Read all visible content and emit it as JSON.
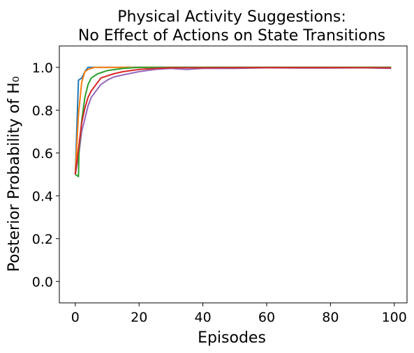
{
  "chart_data": {
    "type": "line",
    "title_lines": [
      "Physical Activity Suggestions:",
      "No Effect of Actions on State Transitions"
    ],
    "xlabel": "Episodes",
    "ylabel": "Posterior Probability of H₀",
    "xlim": [
      -5,
      104
    ],
    "ylim": [
      -0.1,
      1.1
    ],
    "xticks": [
      0,
      20,
      40,
      60,
      80,
      100
    ],
    "yticks": [
      0.0,
      0.2,
      0.4,
      0.6,
      0.8,
      1.0
    ],
    "xtick_labels": [
      "0",
      "20",
      "40",
      "60",
      "80",
      "100"
    ],
    "ytick_labels": [
      "0.0",
      "0.2",
      "0.4",
      "0.6",
      "0.8",
      "1.0"
    ],
    "grid": false,
    "legend": "none",
    "series": [
      {
        "color": "#1f77b4",
        "points": [
          [
            0,
            0.5
          ],
          [
            1,
            0.94
          ],
          [
            2,
            0.95
          ],
          [
            3,
            0.98
          ],
          [
            4,
            1.0
          ],
          [
            10,
            1.0
          ],
          [
            30,
            1.0
          ],
          [
            60,
            1.0
          ],
          [
            99,
            1.0
          ]
        ]
      },
      {
        "color": "#ff7f0e",
        "points": [
          [
            0,
            0.5
          ],
          [
            1,
            0.78
          ],
          [
            2,
            0.93
          ],
          [
            3,
            0.98
          ],
          [
            4,
            0.99
          ],
          [
            6,
            1.0
          ],
          [
            30,
            1.0
          ],
          [
            60,
            1.0
          ],
          [
            99,
            1.0
          ]
        ]
      },
      {
        "color": "#9467bd",
        "points": [
          [
            0,
            0.5
          ],
          [
            1,
            0.58
          ],
          [
            2,
            0.7
          ],
          [
            3,
            0.76
          ],
          [
            4,
            0.82
          ],
          [
            5,
            0.86
          ],
          [
            6,
            0.88
          ],
          [
            7,
            0.9
          ],
          [
            8,
            0.92
          ],
          [
            10,
            0.94
          ],
          [
            12,
            0.955
          ],
          [
            15,
            0.965
          ],
          [
            20,
            0.98
          ],
          [
            25,
            0.99
          ],
          [
            30,
            0.995
          ],
          [
            35,
            0.99
          ],
          [
            40,
            0.995
          ],
          [
            50,
            0.995
          ],
          [
            60,
            0.998
          ],
          [
            70,
            0.997
          ],
          [
            80,
            0.997
          ],
          [
            90,
            0.998
          ],
          [
            99,
            0.995
          ]
        ]
      },
      {
        "color": "#2ca02c",
        "points": [
          [
            0,
            0.5
          ],
          [
            1,
            0.49
          ],
          [
            1.2,
            0.62
          ],
          [
            2,
            0.75
          ],
          [
            3,
            0.86
          ],
          [
            4,
            0.92
          ],
          [
            5,
            0.95
          ],
          [
            7,
            0.97
          ],
          [
            10,
            0.985
          ],
          [
            15,
            0.995
          ],
          [
            20,
            1.0
          ],
          [
            30,
            1.0
          ],
          [
            60,
            1.0
          ],
          [
            99,
            1.0
          ]
        ]
      },
      {
        "color": "#d62728",
        "points": [
          [
            0,
            0.5
          ],
          [
            1,
            0.62
          ],
          [
            2,
            0.74
          ],
          [
            3,
            0.81
          ],
          [
            4,
            0.86
          ],
          [
            5,
            0.89
          ],
          [
            6,
            0.91
          ],
          [
            7,
            0.93
          ],
          [
            8,
            0.95
          ],
          [
            10,
            0.96
          ],
          [
            12,
            0.97
          ],
          [
            15,
            0.98
          ],
          [
            20,
            0.99
          ],
          [
            25,
            0.995
          ],
          [
            30,
            0.998
          ],
          [
            40,
            0.998
          ],
          [
            60,
            0.999
          ],
          [
            80,
            0.999
          ],
          [
            99,
            0.998
          ]
        ]
      }
    ]
  }
}
